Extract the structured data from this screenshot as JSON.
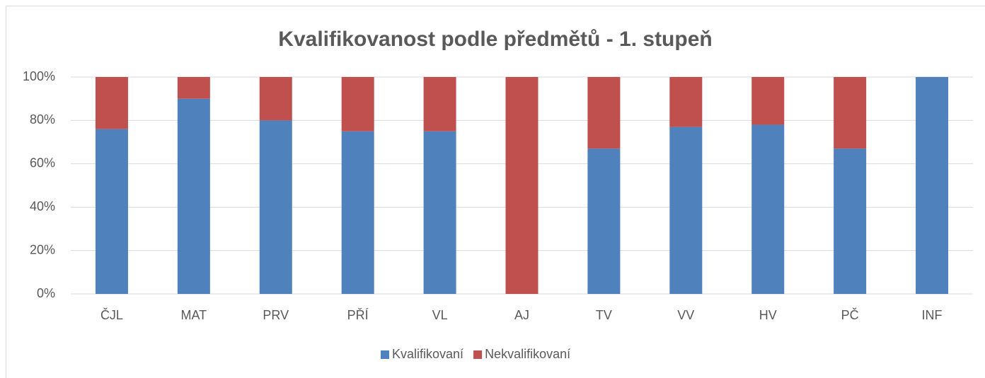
{
  "chart_data": {
    "type": "bar",
    "stacked": true,
    "title": "Kvalifikovanost podle předmětů - 1. stupeň",
    "categories": [
      "ČJL",
      "MAT",
      "PRV",
      "PŘÍ",
      "VL",
      "AJ",
      "TV",
      "VV",
      "HV",
      "PČ",
      "INF"
    ],
    "series": [
      {
        "name": "Kvalifikovaní",
        "color": "#4f81bd",
        "values": [
          76,
          90,
          80,
          75,
          75,
          0,
          67,
          77,
          78,
          67,
          100
        ]
      },
      {
        "name": "Nekvalifikovaní",
        "color": "#c0504d",
        "values": [
          24,
          10,
          20,
          25,
          25,
          100,
          33,
          23,
          22,
          33,
          0
        ]
      }
    ],
    "ylim": [
      0,
      100
    ],
    "yticks": [
      {
        "value": 0,
        "label": "0%"
      },
      {
        "value": 20,
        "label": "20%"
      },
      {
        "value": 40,
        "label": "40%"
      },
      {
        "value": 60,
        "label": "60%"
      },
      {
        "value": 80,
        "label": "80%"
      },
      {
        "value": 100,
        "label": "100%"
      }
    ],
    "grid": true,
    "legend": "bottom"
  }
}
